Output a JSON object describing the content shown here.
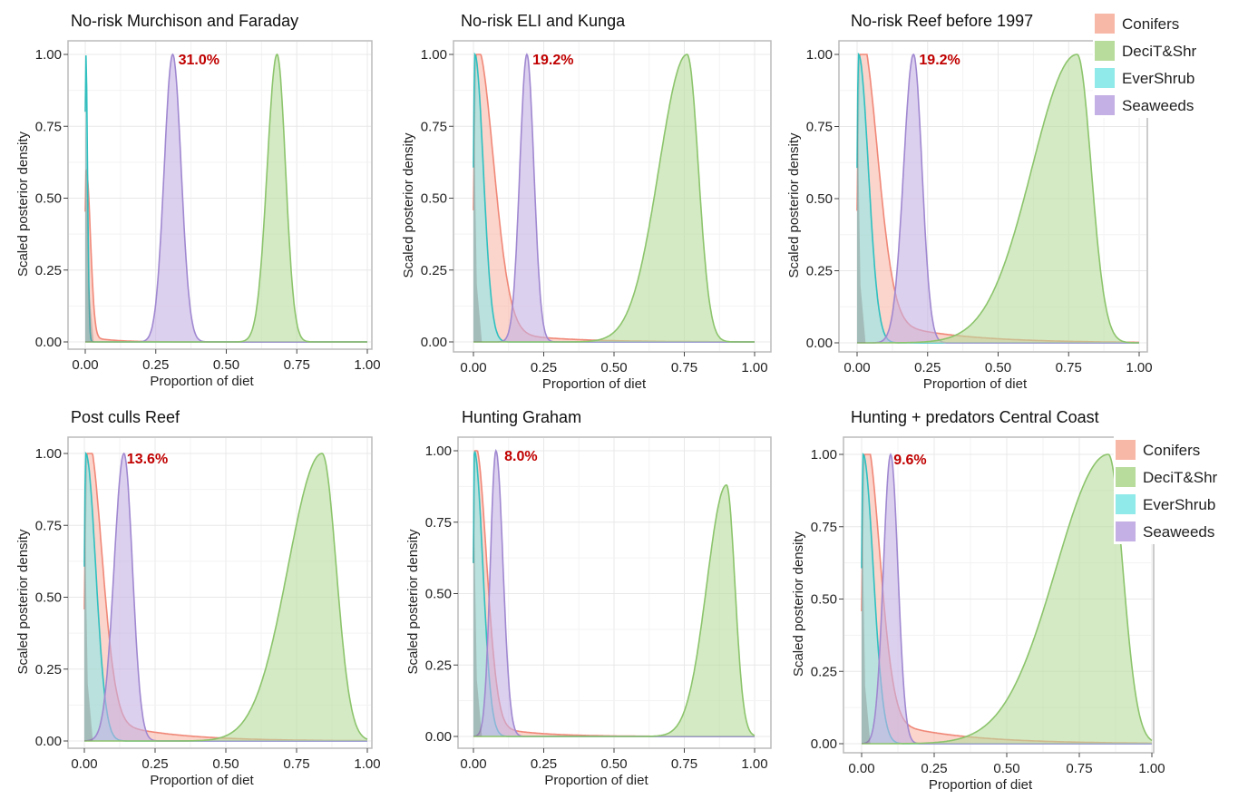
{
  "chart_data": [
    {
      "type": "area",
      "title": "No-risk Murchison and Faraday",
      "xlabel": "Proportion of diet",
      "ylabel": "Scaled posterior density",
      "xlim": [
        0,
        1
      ],
      "ylim": [
        0,
        1
      ],
      "xticks": [
        "0.00",
        "0.25",
        "0.50",
        "0.75",
        "1.00"
      ],
      "yticks": [
        "0.00",
        "0.25",
        "0.50",
        "0.75",
        "1.00"
      ],
      "annotation": "31.0%",
      "annotation_x": 0.33,
      "legend": "none",
      "series": [
        {
          "name": "Conifers",
          "peak": 0.003,
          "sl": 0.004,
          "sr": 0.015,
          "height": 0.6,
          "tail": 0.02,
          "tailw": 0.08
        },
        {
          "name": "DeciT&Shr",
          "peak": 0.68,
          "sl": 0.035,
          "sr": 0.03,
          "height": 1.0
        },
        {
          "name": "EverShrub",
          "peak": 0.002,
          "sl": 0.003,
          "sr": 0.006,
          "height": 1.0
        },
        {
          "name": "Seaweeds",
          "peak": 0.31,
          "sl": 0.03,
          "sr": 0.03,
          "height": 1.0
        }
      ]
    },
    {
      "type": "area",
      "title": "No-risk ELI and Kunga",
      "xlabel": "Proportion of diet",
      "ylabel": "Scaled posterior density",
      "xlim": [
        0,
        1
      ],
      "ylim": [
        0,
        1
      ],
      "xticks": [
        "0.00",
        "0.25",
        "0.50",
        "0.75",
        "1.00"
      ],
      "yticks": [
        "0.00",
        "0.25",
        "0.50",
        "0.75",
        "1.00"
      ],
      "annotation": "19.2%",
      "annotation_x": 0.21,
      "legend": "none",
      "series": [
        {
          "name": "Conifers",
          "peak": 0.01,
          "sl": 0.008,
          "sr": 0.06,
          "height": 1.0,
          "tail": 0.05,
          "tailw": 0.2
        },
        {
          "name": "DeciT&Shr",
          "peak": 0.76,
          "sl": 0.1,
          "sr": 0.04,
          "height": 1.0
        },
        {
          "name": "EverShrub",
          "peak": 0.005,
          "sl": 0.005,
          "sr": 0.03,
          "height": 1.0
        },
        {
          "name": "Seaweeds",
          "peak": 0.19,
          "sl": 0.025,
          "sr": 0.025,
          "height": 1.0
        }
      ]
    },
    {
      "type": "area",
      "title": "No-risk Reef before 1997",
      "xlabel": "Proportion of diet",
      "ylabel": "Scaled posterior density",
      "xlim": [
        0,
        1
      ],
      "ylim": [
        0,
        1
      ],
      "xticks": [
        "0.00",
        "0.25",
        "0.50",
        "0.75",
        "1.00"
      ],
      "yticks": [
        "0.00",
        "0.25",
        "0.50",
        "0.75",
        "1.00"
      ],
      "annotation": "19.2%",
      "annotation_x": 0.22,
      "legend": "top-right",
      "series": [
        {
          "name": "Conifers",
          "peak": 0.01,
          "sl": 0.008,
          "sr": 0.06,
          "height": 1.0,
          "tail": 0.1,
          "tailw": 0.25
        },
        {
          "name": "DeciT&Shr",
          "peak": 0.78,
          "sl": 0.16,
          "sr": 0.05,
          "height": 1.0
        },
        {
          "name": "EverShrub",
          "peak": 0.005,
          "sl": 0.005,
          "sr": 0.035,
          "height": 1.0
        },
        {
          "name": "Seaweeds",
          "peak": 0.2,
          "sl": 0.035,
          "sr": 0.03,
          "height": 1.0
        }
      ]
    },
    {
      "type": "area",
      "title": "Post culls Reef",
      "xlabel": "Proportion of diet",
      "ylabel": "Scaled posterior density",
      "xlim": [
        0,
        1
      ],
      "ylim": [
        0,
        1
      ],
      "xticks": [
        "0.00",
        "0.25",
        "0.50",
        "0.75",
        "1.00"
      ],
      "yticks": [
        "0.00",
        "0.25",
        "0.50",
        "0.75",
        "1.00"
      ],
      "annotation": "13.6%",
      "annotation_x": 0.15,
      "legend": "none",
      "series": [
        {
          "name": "Conifers",
          "peak": 0.01,
          "sl": 0.008,
          "sr": 0.05,
          "height": 1.0,
          "tail": 0.09,
          "tailw": 0.22
        },
        {
          "name": "DeciT&Shr",
          "peak": 0.84,
          "sl": 0.12,
          "sr": 0.05,
          "height": 1.0
        },
        {
          "name": "EverShrub",
          "peak": 0.005,
          "sl": 0.005,
          "sr": 0.035,
          "height": 1.0
        },
        {
          "name": "Seaweeds",
          "peak": 0.14,
          "sl": 0.035,
          "sr": 0.03,
          "height": 1.0
        }
      ]
    },
    {
      "type": "area",
      "title": "Hunting Graham",
      "xlabel": "Proportion of diet",
      "ylabel": "Scaled posterior density",
      "xlim": [
        0,
        1
      ],
      "ylim": [
        0,
        1
      ],
      "xticks": [
        "0.00",
        "0.25",
        "0.50",
        "0.75",
        "1.00"
      ],
      "yticks": [
        "0.00",
        "0.25",
        "0.50",
        "0.75",
        "1.00"
      ],
      "annotation": "8.0%",
      "annotation_x": 0.11,
      "legend": "none",
      "series": [
        {
          "name": "Conifers",
          "peak": 0.005,
          "sl": 0.005,
          "sr": 0.04,
          "height": 1.0,
          "tail": 0.05,
          "tailw": 0.15
        },
        {
          "name": "DeciT&Shr",
          "peak": 0.9,
          "sl": 0.07,
          "sr": 0.03,
          "height": 0.88
        },
        {
          "name": "EverShrub",
          "peak": 0.003,
          "sl": 0.003,
          "sr": 0.03,
          "height": 1.0
        },
        {
          "name": "Seaweeds",
          "peak": 0.08,
          "sl": 0.02,
          "sr": 0.025,
          "height": 1.0
        }
      ]
    },
    {
      "type": "area",
      "title": "Hunting + predators Central Coast",
      "xlabel": "Proportion of diet",
      "ylabel": "Scaled posterior density",
      "xlim": [
        0,
        1
      ],
      "ylim": [
        0,
        1
      ],
      "xticks": [
        "0.00",
        "0.25",
        "0.50",
        "0.75",
        "1.00"
      ],
      "yticks": [
        "0.00",
        "0.25",
        "0.50",
        "0.75",
        "1.00"
      ],
      "annotation": "9.6%",
      "annotation_x": 0.11,
      "legend": "top-right",
      "series": [
        {
          "name": "Conifers",
          "peak": 0.01,
          "sl": 0.008,
          "sr": 0.05,
          "height": 1.0,
          "tail": 0.1,
          "tailw": 0.25
        },
        {
          "name": "DeciT&Shr",
          "peak": 0.85,
          "sl": 0.18,
          "sr": 0.05,
          "height": 1.0
        },
        {
          "name": "EverShrub",
          "peak": 0.005,
          "sl": 0.005,
          "sr": 0.035,
          "height": 1.0
        },
        {
          "name": "Seaweeds",
          "peak": 0.1,
          "sl": 0.025,
          "sr": 0.025,
          "height": 1.0
        }
      ]
    }
  ],
  "legend_entries": [
    "Conifers",
    "DeciT&Shr",
    "EverShrub",
    "Seaweeds"
  ],
  "colors": {
    "Conifers": {
      "fill": "#f8b8a8",
      "line": "#f08878"
    },
    "DeciT&Shr": {
      "fill": "#b8dc9c",
      "line": "#8cc46c"
    },
    "EverShrub": {
      "fill": "#90eaea",
      "line": "#30c0c0"
    },
    "Seaweeds": {
      "fill": "#c4b0e4",
      "line": "#a088d0"
    },
    "grid": "#e8e8e8",
    "frame": "#bbbbbb"
  }
}
